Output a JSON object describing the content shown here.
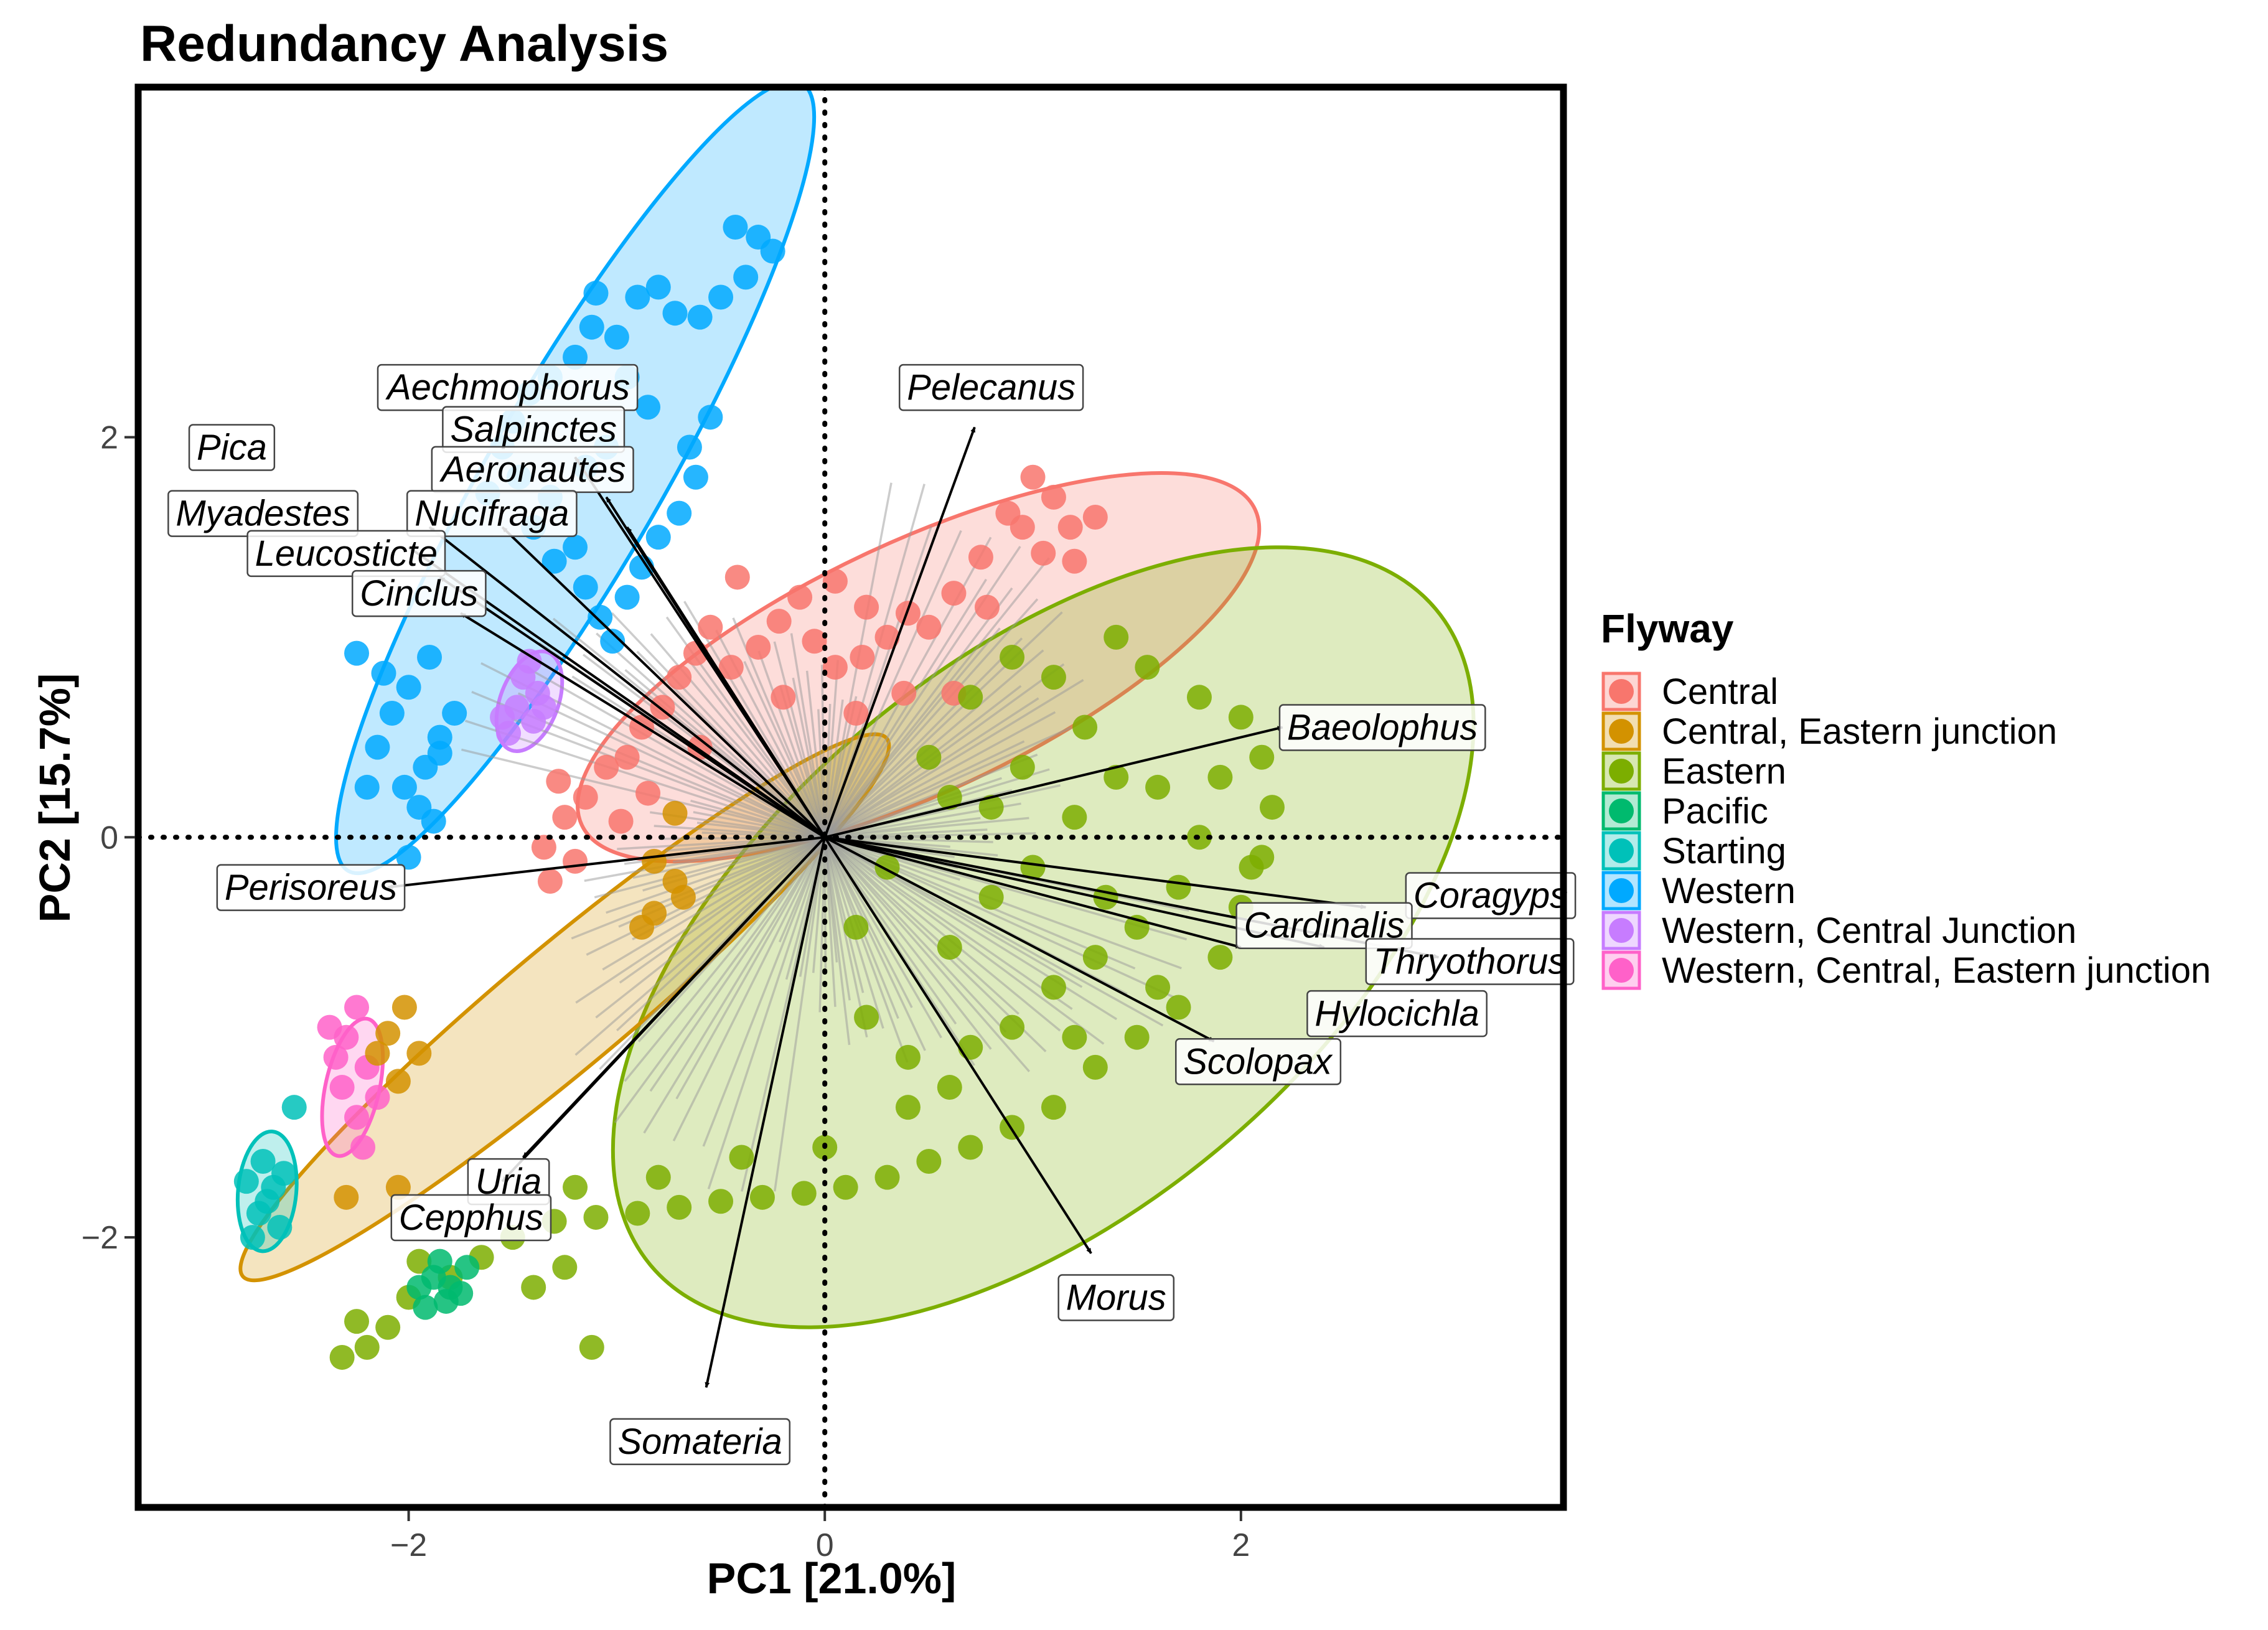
{
  "chart_data": {
    "type": "scatter",
    "title": "Redundancy Analysis",
    "xlabel": "PC1 [21.0%]",
    "ylabel": "PC2 [15.7%]",
    "xlim": [
      -3.3,
      3.55
    ],
    "ylim": [
      -3.35,
      3.75
    ],
    "xticks": [
      -2,
      0,
      2
    ],
    "yticks": [
      -2,
      0,
      2
    ],
    "xtick_labels": [
      "−2",
      "0",
      "2"
    ],
    "ytick_labels": [
      "−2",
      "0",
      "2"
    ],
    "grid": false,
    "reference_lines": [
      "x = 0 (dotted)",
      "y = 0 (dotted)"
    ],
    "legend": {
      "title": "Flyway",
      "position": "right",
      "entries": [
        {
          "name": "Central",
          "color": "#F8766D"
        },
        {
          "name": "Central, Eastern junction",
          "color": "#D39200"
        },
        {
          "name": "Eastern",
          "color": "#7CAE00"
        },
        {
          "name": "Pacific",
          "color": "#00BA6E"
        },
        {
          "name": "Starting",
          "color": "#00C1B9"
        },
        {
          "name": "Western",
          "color": "#00A9FF"
        },
        {
          "name": "Western, Central Junction",
          "color": "#C77CFF"
        },
        {
          "name": "Western, Central, Eastern junction",
          "color": "#FF61C9"
        }
      ]
    },
    "ellipses": [
      {
        "group": "Western",
        "center": [
          -1.2,
          1.8
        ],
        "semi_axes": [
          2.25,
          0.42
        ],
        "angle_deg": 61
      },
      {
        "group": "Central",
        "center": [
          0.45,
          0.85
        ],
        "semi_axes": [
          1.8,
          0.62
        ],
        "angle_deg": 26
      },
      {
        "group": "Eastern",
        "center": [
          1.05,
          -0.5
        ],
        "semi_axes": [
          2.5,
          1.35
        ],
        "angle_deg": 41
      },
      {
        "group": "Central, Eastern junction",
        "center": [
          -1.25,
          -0.85
        ],
        "semi_axes": [
          2.05,
          0.3
        ],
        "angle_deg": 41
      },
      {
        "group": "Western, Central Junction",
        "center": [
          -1.42,
          0.68
        ],
        "semi_axes": [
          0.26,
          0.14
        ],
        "angle_deg": 70
      },
      {
        "group": "Western, Central, Eastern junction",
        "center": [
          -2.27,
          -1.25
        ],
        "semi_axes": [
          0.35,
          0.13
        ],
        "angle_deg": 78
      },
      {
        "group": "Starting",
        "center": [
          -2.68,
          -1.77
        ],
        "semi_axes": [
          0.3,
          0.14
        ],
        "angle_deg": 85
      }
    ],
    "point_clusters": [
      {
        "group": "Western",
        "points": [
          [
            -0.43,
            3.05
          ],
          [
            -0.32,
            3.0
          ],
          [
            -0.25,
            2.93
          ],
          [
            -0.38,
            2.8
          ],
          [
            -0.5,
            2.7
          ],
          [
            -0.6,
            2.6
          ],
          [
            -0.72,
            2.62
          ],
          [
            -0.8,
            2.75
          ],
          [
            -0.9,
            2.7
          ],
          [
            -1.0,
            2.5
          ],
          [
            -1.1,
            2.72
          ],
          [
            -1.12,
            2.55
          ],
          [
            -1.2,
            2.4
          ],
          [
            -1.32,
            2.3
          ],
          [
            -1.42,
            2.22
          ],
          [
            -1.5,
            2.08
          ],
          [
            -1.55,
            1.95
          ],
          [
            -1.47,
            1.8
          ],
          [
            -1.62,
            1.72
          ],
          [
            -1.32,
            1.7
          ],
          [
            -1.4,
            1.55
          ],
          [
            -1.2,
            1.45
          ],
          [
            -1.3,
            1.38
          ],
          [
            -1.15,
            1.25
          ],
          [
            -1.08,
            1.1
          ],
          [
            -1.02,
            0.98
          ],
          [
            -0.95,
            1.2
          ],
          [
            -0.88,
            1.35
          ],
          [
            -0.8,
            1.5
          ],
          [
            -0.7,
            1.62
          ],
          [
            -0.62,
            1.8
          ],
          [
            -0.65,
            1.95
          ],
          [
            -0.55,
            2.1
          ],
          [
            -0.95,
            2.3
          ],
          [
            -0.85,
            2.15
          ],
          [
            -1.05,
            1.95
          ],
          [
            -1.15,
            1.85
          ],
          [
            -1.9,
            0.9
          ],
          [
            -2.0,
            0.75
          ],
          [
            -2.08,
            0.62
          ],
          [
            -1.85,
            0.5
          ],
          [
            -1.92,
            0.35
          ],
          [
            -2.02,
            0.25
          ],
          [
            -1.95,
            0.15
          ],
          [
            -1.85,
            0.42
          ],
          [
            -2.12,
            0.82
          ],
          [
            -1.78,
            0.62
          ],
          [
            -2.15,
            0.45
          ],
          [
            -2.2,
            0.25
          ],
          [
            -1.88,
            0.08
          ],
          [
            -2.0,
            -0.1
          ],
          [
            -2.25,
            0.92
          ]
        ]
      },
      {
        "group": "Central",
        "points": [
          [
            1.0,
            1.8
          ],
          [
            1.1,
            1.7
          ],
          [
            1.18,
            1.55
          ],
          [
            0.95,
            1.55
          ],
          [
            1.05,
            1.42
          ],
          [
            0.88,
            1.62
          ],
          [
            1.2,
            1.38
          ],
          [
            0.75,
            1.4
          ],
          [
            0.62,
            1.22
          ],
          [
            0.5,
            1.05
          ],
          [
            0.4,
            1.12
          ],
          [
            0.3,
            1.0
          ],
          [
            0.18,
            0.9
          ],
          [
            0.05,
            0.85
          ],
          [
            -0.05,
            0.98
          ],
          [
            -0.12,
            1.2
          ],
          [
            -0.22,
            1.08
          ],
          [
            -0.32,
            0.95
          ],
          [
            -0.45,
            0.85
          ],
          [
            -0.55,
            1.05
          ],
          [
            -0.62,
            0.92
          ],
          [
            -0.7,
            0.8
          ],
          [
            -0.78,
            0.65
          ],
          [
            -0.88,
            0.55
          ],
          [
            -0.95,
            0.4
          ],
          [
            -1.05,
            0.35
          ],
          [
            -1.15,
            0.2
          ],
          [
            -1.25,
            0.1
          ],
          [
            -1.35,
            -0.05
          ],
          [
            -1.32,
            -0.22
          ],
          [
            -1.2,
            -0.12
          ],
          [
            -0.42,
            1.3
          ],
          [
            0.2,
            1.15
          ],
          [
            0.78,
            1.15
          ],
          [
            1.3,
            1.6
          ],
          [
            0.38,
            0.72
          ],
          [
            0.15,
            0.62
          ],
          [
            -0.2,
            0.7
          ],
          [
            -0.85,
            0.22
          ],
          [
            -0.6,
            0.45
          ],
          [
            0.62,
            0.72
          ],
          [
            0.05,
            1.28
          ],
          [
            -1.28,
            0.28
          ],
          [
            -0.98,
            0.08
          ]
        ]
      },
      {
        "group": "Eastern",
        "points": [
          [
            1.4,
            1.0
          ],
          [
            1.55,
            0.85
          ],
          [
            1.8,
            0.7
          ],
          [
            2.0,
            0.6
          ],
          [
            2.1,
            0.4
          ],
          [
            2.15,
            0.15
          ],
          [
            2.1,
            -0.1
          ],
          [
            2.0,
            -0.35
          ],
          [
            1.9,
            -0.6
          ],
          [
            1.7,
            -0.85
          ],
          [
            1.5,
            -1.0
          ],
          [
            1.3,
            -1.15
          ],
          [
            1.1,
            -1.35
          ],
          [
            0.9,
            -1.45
          ],
          [
            0.7,
            -1.55
          ],
          [
            0.5,
            -1.62
          ],
          [
            0.3,
            -1.7
          ],
          [
            0.1,
            -1.75
          ],
          [
            -0.1,
            -1.78
          ],
          [
            -0.3,
            -1.8
          ],
          [
            -0.5,
            -1.82
          ],
          [
            -0.7,
            -1.85
          ],
          [
            -0.9,
            -1.88
          ],
          [
            -1.1,
            -1.9
          ],
          [
            -1.3,
            -1.92
          ],
          [
            -1.5,
            -2.0
          ],
          [
            -1.65,
            -2.1
          ],
          [
            -1.8,
            -2.2
          ],
          [
            -2.0,
            -2.3
          ],
          [
            -2.1,
            -2.45
          ],
          [
            -2.25,
            -2.42
          ],
          [
            -2.32,
            -2.6
          ],
          [
            -2.2,
            -2.55
          ],
          [
            -1.95,
            -2.12
          ],
          [
            -1.4,
            -2.25
          ],
          [
            -1.25,
            -2.15
          ],
          [
            -1.12,
            -2.55
          ],
          [
            0.6,
            -1.25
          ],
          [
            0.4,
            -1.1
          ],
          [
            0.2,
            -0.9
          ],
          [
            0.6,
            -0.55
          ],
          [
            0.8,
            -0.3
          ],
          [
            1.0,
            -0.15
          ],
          [
            1.2,
            0.1
          ],
          [
            1.4,
            0.3
          ],
          [
            1.6,
            0.25
          ],
          [
            1.8,
            0.0
          ],
          [
            1.7,
            -0.25
          ],
          [
            1.5,
            -0.45
          ],
          [
            1.3,
            -0.6
          ],
          [
            1.1,
            -0.75
          ],
          [
            0.9,
            -0.95
          ],
          [
            0.7,
            -1.05
          ],
          [
            0.5,
            0.4
          ],
          [
            0.7,
            0.7
          ],
          [
            0.9,
            0.9
          ],
          [
            1.1,
            0.8
          ],
          [
            0.6,
            0.2
          ],
          [
            1.35,
            -0.3
          ],
          [
            1.6,
            -0.75
          ],
          [
            1.2,
            -1.0
          ],
          [
            0.4,
            -1.35
          ],
          [
            0.0,
            -1.55
          ],
          [
            -0.4,
            -1.6
          ],
          [
            -0.8,
            -1.7
          ],
          [
            -1.2,
            -1.75
          ],
          [
            0.3,
            -0.15
          ],
          [
            0.15,
            -0.45
          ],
          [
            0.95,
            0.35
          ],
          [
            1.9,
            0.3
          ],
          [
            2.05,
            -0.15
          ],
          [
            1.25,
            0.55
          ],
          [
            0.8,
            0.15
          ]
        ]
      },
      {
        "group": "Pacific",
        "points": [
          [
            -1.88,
            -2.2
          ],
          [
            -1.8,
            -2.25
          ],
          [
            -1.72,
            -2.15
          ],
          [
            -1.82,
            -2.32
          ],
          [
            -1.92,
            -2.35
          ],
          [
            -1.75,
            -2.28
          ],
          [
            -1.85,
            -2.12
          ],
          [
            -1.95,
            -2.25
          ]
        ]
      },
      {
        "group": "Starting",
        "points": [
          [
            -2.7,
            -1.62
          ],
          [
            -2.65,
            -1.75
          ],
          [
            -2.72,
            -1.88
          ],
          [
            -2.62,
            -1.95
          ],
          [
            -2.75,
            -2.0
          ],
          [
            -2.68,
            -1.82
          ],
          [
            -2.6,
            -1.68
          ],
          [
            -2.78,
            -1.72
          ],
          [
            -2.55,
            -1.35
          ]
        ]
      },
      {
        "group": "Western, Central Junction",
        "points": [
          [
            -1.45,
            0.8
          ],
          [
            -1.38,
            0.72
          ],
          [
            -1.48,
            0.65
          ],
          [
            -1.4,
            0.58
          ],
          [
            -1.52,
            0.52
          ],
          [
            -1.35,
            0.65
          ],
          [
            -1.42,
            0.88
          ],
          [
            -1.55,
            0.6
          ]
        ]
      },
      {
        "group": "Western, Central, Eastern junction",
        "points": [
          [
            -2.25,
            -0.85
          ],
          [
            -2.3,
            -1.0
          ],
          [
            -2.2,
            -1.15
          ],
          [
            -2.32,
            -1.25
          ],
          [
            -2.25,
            -1.4
          ],
          [
            -2.15,
            -1.3
          ],
          [
            -2.35,
            -1.1
          ],
          [
            -2.22,
            -1.55
          ],
          [
            -2.38,
            -0.95
          ]
        ]
      },
      {
        "group": "Central, Eastern junction",
        "points": [
          [
            -2.02,
            -0.85
          ],
          [
            -2.1,
            -0.98
          ],
          [
            -1.95,
            -1.08
          ],
          [
            -2.05,
            -1.22
          ],
          [
            -2.15,
            -1.08
          ],
          [
            -2.3,
            -1.8
          ],
          [
            -2.05,
            -1.75
          ],
          [
            -0.82,
            -0.12
          ],
          [
            -0.72,
            -0.22
          ],
          [
            -0.82,
            -0.38
          ],
          [
            -0.68,
            -0.3
          ],
          [
            -0.88,
            -0.45
          ],
          [
            -0.72,
            0.12
          ]
        ]
      }
    ],
    "vectors": [
      {
        "label": "Pelecanus",
        "x": 0.72,
        "y": 2.05
      },
      {
        "label": "Aechmophorus",
        "x": -1.2,
        "y": 1.9
      },
      {
        "label": "Salpinctes",
        "x": -1.05,
        "y": 1.7
      },
      {
        "label": "Aeronautes",
        "x": -0.95,
        "y": 1.55
      },
      {
        "label": "Nucifraga",
        "x": -1.55,
        "y": 1.55
      },
      {
        "label": "Pica",
        "x": -1.9,
        "y": 1.55
      },
      {
        "label": "Myadestes",
        "x": -2.0,
        "y": 1.45
      },
      {
        "label": "Leucosticte",
        "x": -1.85,
        "y": 1.3
      },
      {
        "label": "Cinclus",
        "x": -1.75,
        "y": 1.12
      },
      {
        "label": "Baeolophus",
        "x": 2.2,
        "y": 0.55
      },
      {
        "label": "Coragyps",
        "x": 2.6,
        "y": -0.35
      },
      {
        "label": "Cardinalis",
        "x": 2.4,
        "y": -0.55
      },
      {
        "label": "Thryothorus",
        "x": 2.95,
        "y": -0.6
      },
      {
        "label": "Hylocichla",
        "x": 2.0,
        "y": -0.55
      },
      {
        "label": "Scolopax",
        "x": 1.87,
        "y": -1.02
      },
      {
        "label": "Morus",
        "x": 1.28,
        "y": -2.08
      },
      {
        "label": "Somateria",
        "x": -0.57,
        "y": -2.75
      },
      {
        "label": "Uria",
        "x": -1.45,
        "y": -1.6
      },
      {
        "label": "Cepphus",
        "x": -1.55,
        "y": -1.72
      },
      {
        "label": "Perisoreus",
        "x": -2.1,
        "y": -0.25
      }
    ],
    "vector_labels": [
      {
        "label": "Pelecanus",
        "x": 0.8,
        "y": 2.25
      },
      {
        "label": "Aechmophorus",
        "x": -1.52,
        "y": 2.25
      },
      {
        "label": "Salpinctes",
        "x": -1.4,
        "y": 2.04
      },
      {
        "label": "Aeronautes",
        "x": -1.4,
        "y": 1.84
      },
      {
        "label": "Nucifraga",
        "x": -1.6,
        "y": 1.62
      },
      {
        "label": "Pica",
        "x": -2.85,
        "y": 1.95
      },
      {
        "label": "Myadestes",
        "x": -2.7,
        "y": 1.62
      },
      {
        "label": "Leucosticte",
        "x": -2.3,
        "y": 1.42
      },
      {
        "label": "Cinclus",
        "x": -1.95,
        "y": 1.22
      },
      {
        "label": "Baeolophus",
        "x": 2.68,
        "y": 0.55
      },
      {
        "label": "Coragyps",
        "x": 3.2,
        "y": -0.29
      },
      {
        "label": "Cardinalis",
        "x": 2.4,
        "y": -0.44
      },
      {
        "label": "Thryothorus",
        "x": 3.1,
        "y": -0.62
      },
      {
        "label": "Hylocichla",
        "x": 2.75,
        "y": -0.88
      },
      {
        "label": "Scolopax",
        "x": 2.08,
        "y": -1.12
      },
      {
        "label": "Morus",
        "x": 1.4,
        "y": -2.3
      },
      {
        "label": "Somateria",
        "x": -0.6,
        "y": -3.02
      },
      {
        "label": "Uria",
        "x": -1.52,
        "y": -1.72
      },
      {
        "label": "Cepphus",
        "x": -1.7,
        "y": -1.9
      },
      {
        "label": "Perisoreus",
        "x": -2.47,
        "y": -0.25
      }
    ]
  }
}
